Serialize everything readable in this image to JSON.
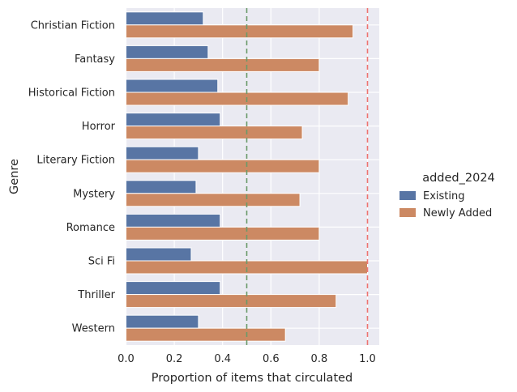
{
  "chart_data": {
    "type": "bar",
    "orientation": "horizontal",
    "xlabel": "Proportion of items that circulated",
    "ylabel": "Genre",
    "xlim": [
      0,
      1.05
    ],
    "xticks": [
      "0.0",
      "0.2",
      "0.4",
      "0.6",
      "0.8",
      "1.0"
    ],
    "xtick_values": [
      0,
      0.2,
      0.4,
      0.6,
      0.8,
      1.0
    ],
    "grid": true,
    "categories": [
      "Christian Fiction",
      "Fantasy",
      "Historical Fiction",
      "Horror",
      "Literary Fiction",
      "Mystery",
      "Romance",
      "Sci Fi",
      "Thriller",
      "Western"
    ],
    "series": [
      {
        "name": "Existing",
        "color": "#5875a4",
        "values": [
          0.32,
          0.34,
          0.38,
          0.39,
          0.3,
          0.29,
          0.39,
          0.27,
          0.39,
          0.3
        ]
      },
      {
        "name": "Newly Added",
        "color": "#cc8963",
        "values": [
          0.94,
          0.8,
          0.92,
          0.73,
          0.8,
          0.72,
          0.8,
          1.0,
          0.87,
          0.66
        ]
      }
    ],
    "reference_lines": [
      {
        "x": 0.5,
        "color": "#6a9a6a",
        "style": "dashed"
      },
      {
        "x": 1.0,
        "color": "#ee7370",
        "style": "dashed"
      }
    ],
    "legend": {
      "title": "added_2024",
      "placement": "right"
    }
  }
}
